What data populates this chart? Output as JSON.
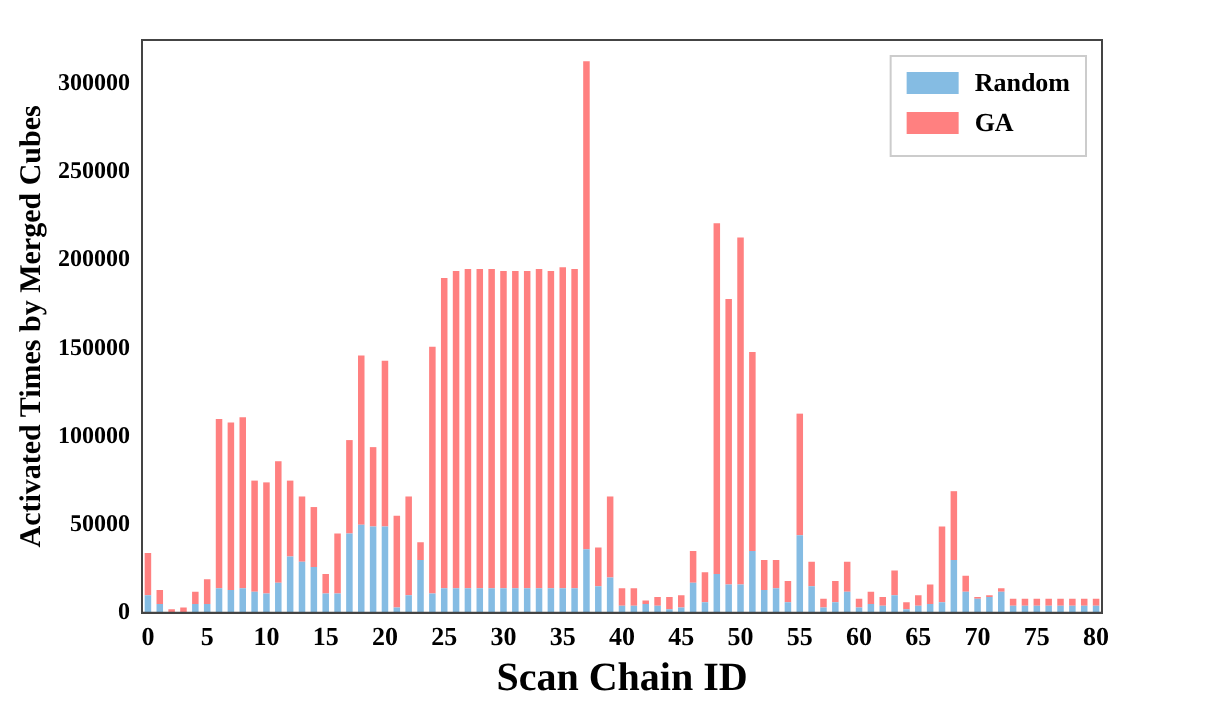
{
  "chart_data": {
    "type": "bar",
    "stacked": true,
    "xlabel": "Scan Chain ID",
    "ylabel": "Activated Times by Merged Cubes",
    "categories": [
      "0",
      null,
      null,
      null,
      null,
      "5",
      null,
      null,
      null,
      null,
      "10",
      null,
      null,
      null,
      null,
      "15",
      null,
      null,
      null,
      null,
      "20",
      null,
      null,
      null,
      null,
      "25",
      null,
      null,
      null,
      null,
      "30",
      null,
      null,
      null,
      null,
      "35",
      null,
      null,
      null,
      null,
      "40",
      null,
      null,
      null,
      null,
      "45",
      null,
      null,
      null,
      null,
      "50",
      null,
      null,
      null,
      null,
      "55",
      null,
      null,
      null,
      null,
      "60",
      null,
      null,
      null,
      null,
      "65",
      null,
      null,
      null,
      null,
      "70",
      null,
      null,
      null,
      null,
      "75",
      null,
      null,
      null,
      null,
      "80"
    ],
    "series": [
      {
        "name": "Random",
        "color": "#85bce3",
        "values": [
          10000,
          5000,
          null,
          null,
          5000,
          5000,
          14000,
          13000,
          14000,
          12000,
          11000,
          17000,
          32000,
          29000,
          26000,
          11000,
          11000,
          45000,
          50000,
          49000,
          49000,
          3000,
          10000,
          30000,
          11000,
          14000,
          14000,
          14000,
          14000,
          14000,
          14000,
          14000,
          14000,
          14000,
          14000,
          14000,
          14000,
          36000,
          15000,
          20000,
          4000,
          4000,
          5000,
          4000,
          2000,
          3000,
          17000,
          6000,
          22000,
          16000,
          16000,
          35000,
          13000,
          14000,
          6000,
          44000,
          15000,
          3000,
          6000,
          12000,
          3000,
          5000,
          4000,
          10000,
          2000,
          4000,
          5000,
          6000,
          30000,
          12000,
          8000,
          9000,
          12000,
          4000,
          4000,
          4000,
          4000,
          4000,
          4000,
          4000,
          4000
        ]
      },
      {
        "name": "GA",
        "color": "#ff8080",
        "values": [
          24000,
          8000,
          2000,
          3000,
          7000,
          14000,
          96000,
          95000,
          97000,
          63000,
          63000,
          69000,
          43000,
          37000,
          34000,
          11000,
          34000,
          53000,
          96000,
          45000,
          94000,
          52000,
          56000,
          10000,
          140000,
          176000,
          180000,
          181000,
          181000,
          181000,
          180000,
          180000,
          180000,
          181000,
          180000,
          182000,
          181000,
          277000,
          22000,
          46000,
          10000,
          10000,
          2000,
          5000,
          7000,
          7000,
          18000,
          17000,
          199000,
          162000,
          197000,
          113000,
          17000,
          16000,
          12000,
          69000,
          14000,
          5000,
          12000,
          17000,
          5000,
          7000,
          5000,
          14000,
          4000,
          6000,
          11000,
          43000,
          39000,
          9000,
          1000,
          1000,
          2000,
          4000,
          4000,
          4000,
          4000,
          4000,
          4000,
          4000,
          4000
        ]
      }
    ],
    "ylim": [
      0,
      325000
    ],
    "yticks": [
      0,
      50000,
      100000,
      150000,
      200000,
      250000,
      300000
    ],
    "legend": "top right"
  }
}
